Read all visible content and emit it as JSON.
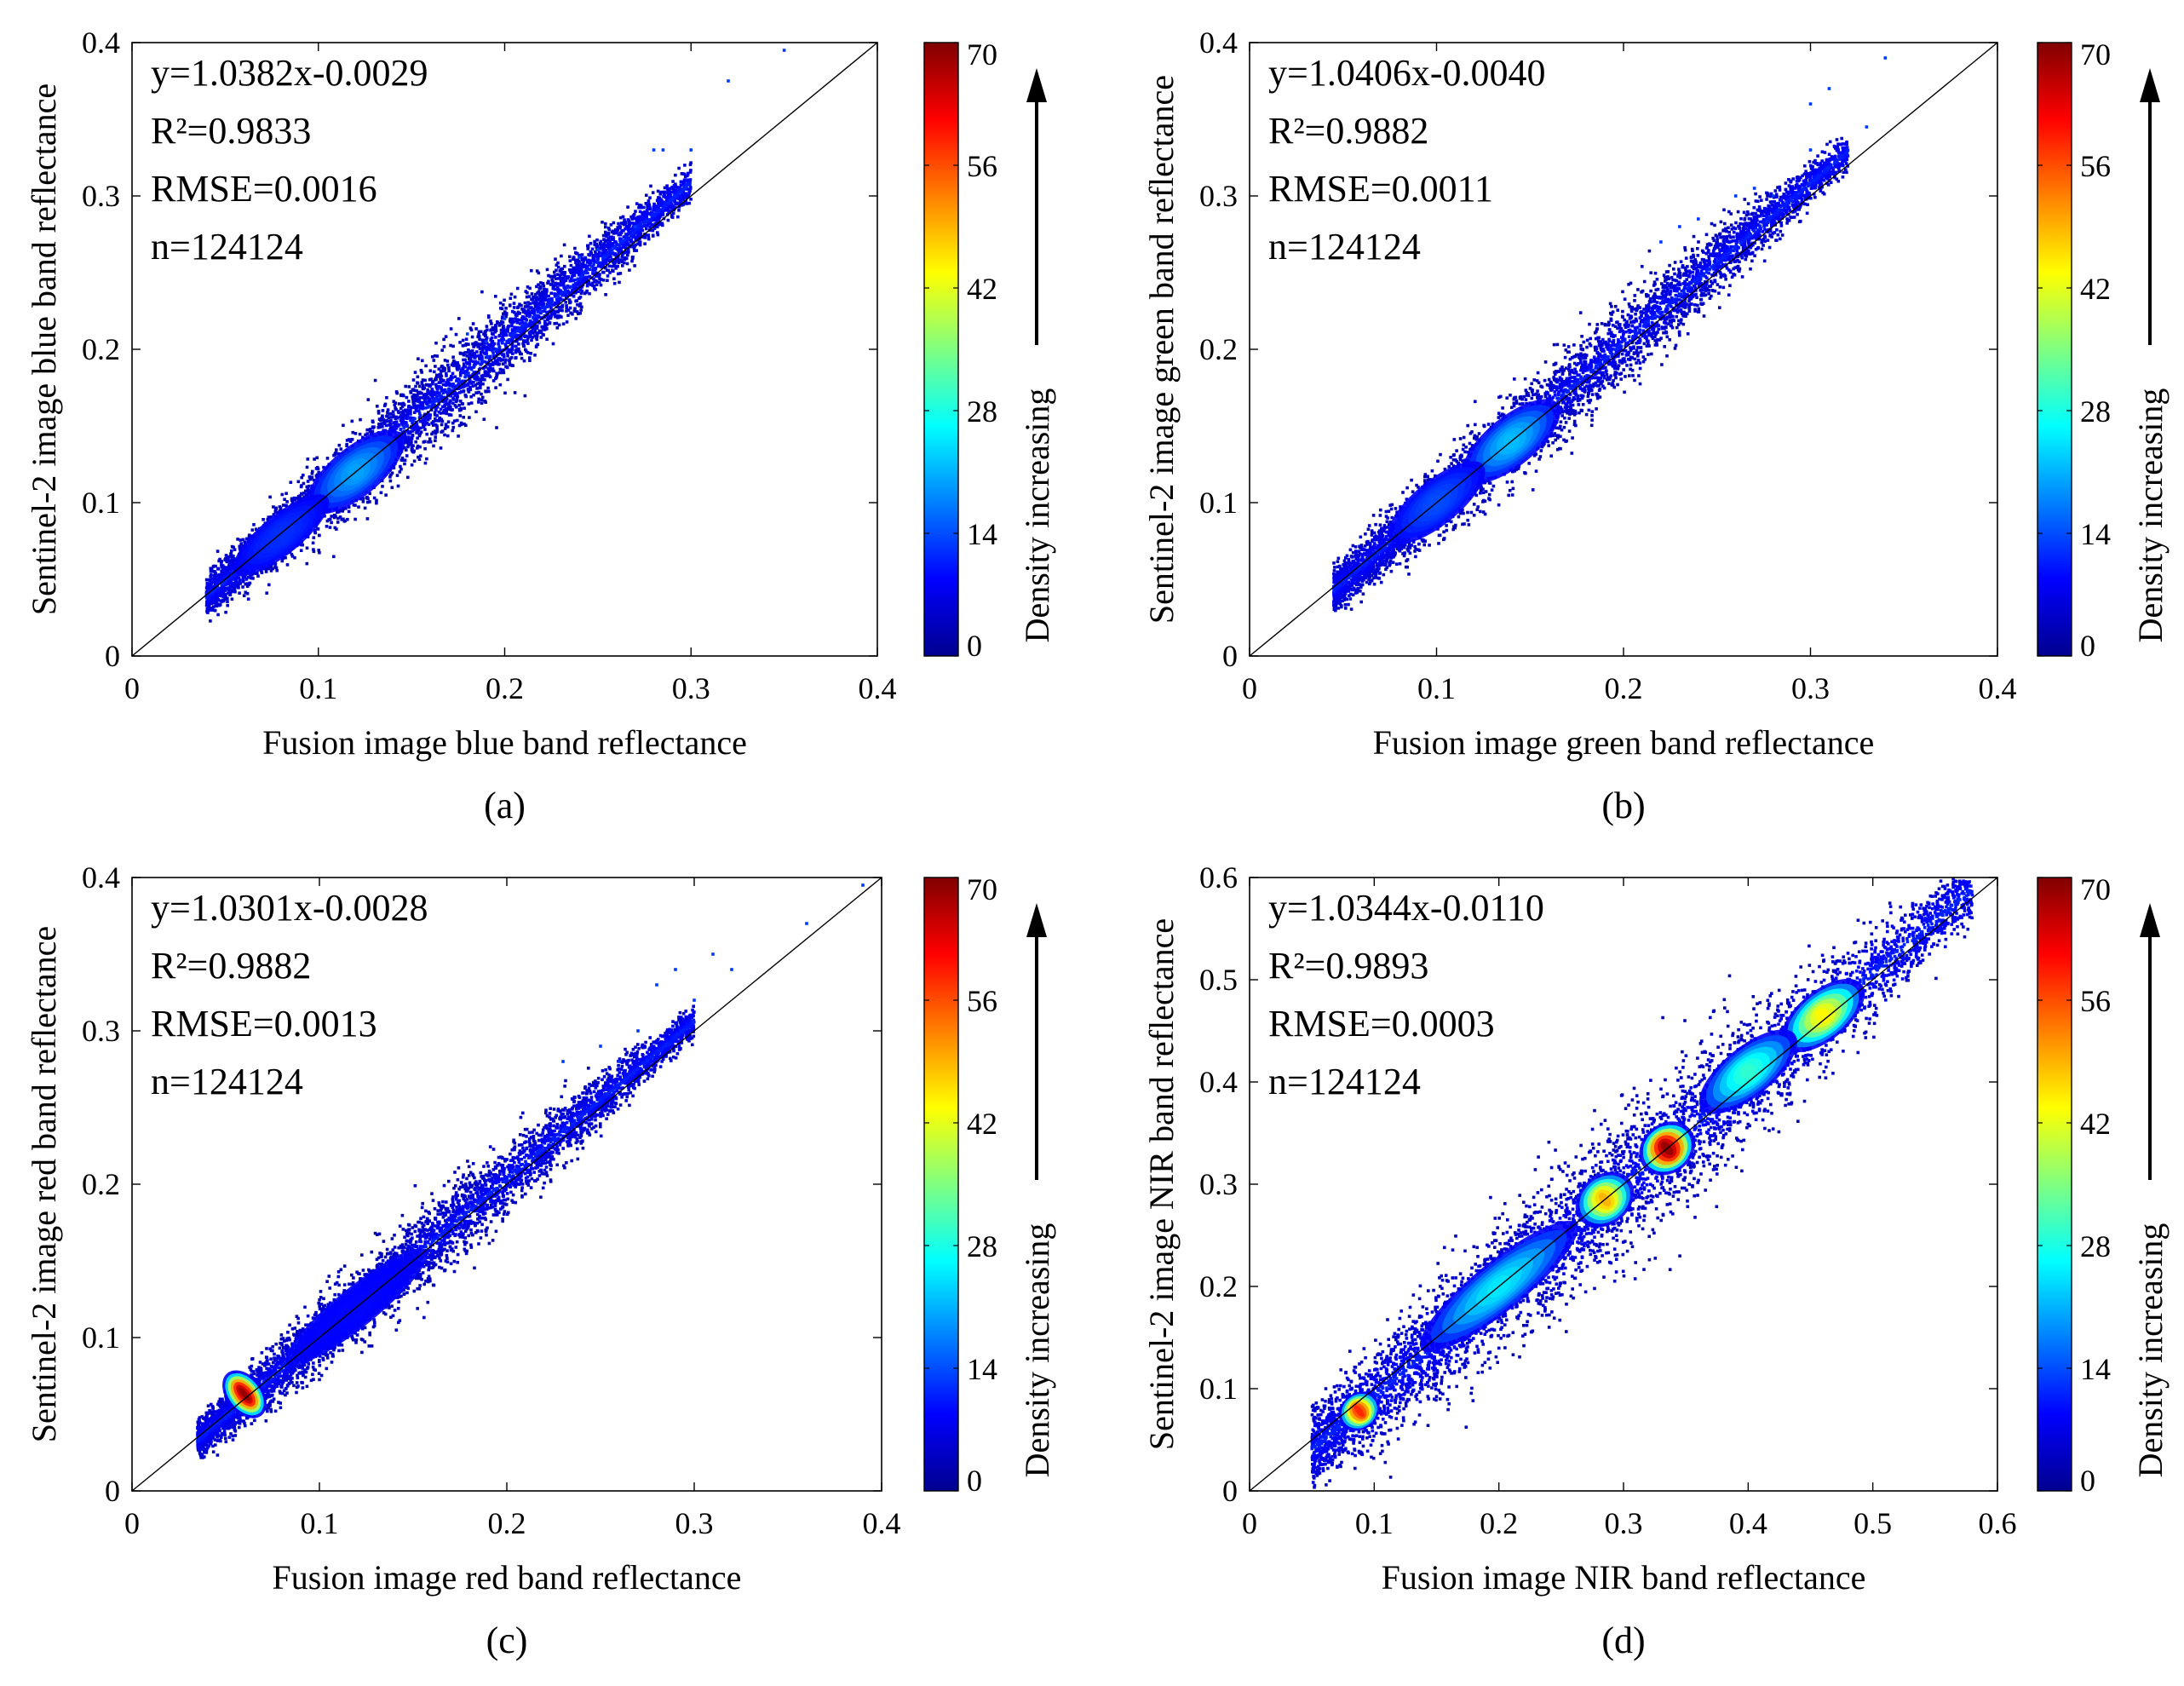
{
  "colorbar": {
    "ticks": [
      "0",
      "14",
      "28",
      "42",
      "56",
      "70"
    ],
    "label": "Density increasing",
    "colors": [
      "#00008f",
      "#0000ff",
      "#0080ff",
      "#00ffff",
      "#80ff80",
      "#ffff00",
      "#ff8000",
      "#ff0000",
      "#800000"
    ]
  },
  "chart_data": [
    {
      "type": "scatter",
      "panel_label": "(a)",
      "xlabel": "Fusion image blue band reflectance",
      "ylabel": "Sentinel-2 image blue band reflectance",
      "xlim": [
        0,
        0.4
      ],
      "ylim": [
        0,
        0.4
      ],
      "xticks": [
        "0",
        "0.1",
        "0.2",
        "0.3",
        "0.4"
      ],
      "yticks": [
        "0",
        "0.1",
        "0.2",
        "0.3",
        "0.4"
      ],
      "stats": [
        "y=1.0382x-0.0029",
        "R²=0.9833",
        "RMSE=0.0016",
        "n=124124"
      ],
      "fit": {
        "slope": 1.0382,
        "intercept": -0.0029
      },
      "one_to_one_line": true,
      "cloud": {
        "x_start": 0.04,
        "x_end": 0.3,
        "width": 0.013
      },
      "density_hotspots": [
        {
          "x": 0.12,
          "y": 0.12,
          "sx": 0.02,
          "sy": 0.008,
          "density": 20
        },
        {
          "x": 0.08,
          "y": 0.079,
          "sx": 0.02,
          "sy": 0.006,
          "density": 12
        }
      ],
      "sparse_points": [
        [
          0.18,
          0.21
        ],
        [
          0.19,
          0.205
        ],
        [
          0.2,
          0.22
        ],
        [
          0.24,
          0.26
        ],
        [
          0.25,
          0.265
        ],
        [
          0.27,
          0.28
        ],
        [
          0.28,
          0.33
        ],
        [
          0.285,
          0.33
        ],
        [
          0.3,
          0.33
        ],
        [
          0.32,
          0.375
        ],
        [
          0.35,
          0.395
        ]
      ]
    },
    {
      "type": "scatter",
      "panel_label": "(b)",
      "xlabel": "Fusion image green band reflectance",
      "ylabel": "Sentinel-2 image green band reflectance",
      "xlim": [
        0,
        0.4
      ],
      "ylim": [
        0,
        0.4
      ],
      "xticks": [
        "0",
        "0.1",
        "0.2",
        "0.3",
        "0.4"
      ],
      "yticks": [
        "0",
        "0.1",
        "0.2",
        "0.3",
        "0.4"
      ],
      "stats": [
        "y=1.0406x-0.0040",
        "R²=0.9882",
        "RMSE=0.0011",
        "n=124124"
      ],
      "fit": {
        "slope": 1.0406,
        "intercept": -0.004
      },
      "one_to_one_line": true,
      "cloud": {
        "x_start": 0.045,
        "x_end": 0.32,
        "width": 0.013
      },
      "density_hotspots": [
        {
          "x": 0.14,
          "y": 0.14,
          "sx": 0.02,
          "sy": 0.008,
          "density": 22
        },
        {
          "x": 0.1,
          "y": 0.1,
          "sx": 0.02,
          "sy": 0.007,
          "density": 14
        }
      ],
      "sparse_points": [
        [
          0.22,
          0.27
        ],
        [
          0.23,
          0.28
        ],
        [
          0.24,
          0.285
        ],
        [
          0.26,
          0.3
        ],
        [
          0.27,
          0.305
        ],
        [
          0.28,
          0.3
        ],
        [
          0.3,
          0.33
        ],
        [
          0.3,
          0.36
        ],
        [
          0.31,
          0.37
        ],
        [
          0.33,
          0.345
        ],
        [
          0.34,
          0.39
        ]
      ]
    },
    {
      "type": "scatter",
      "panel_label": "(c)",
      "xlabel": "Fusion image red band reflectance",
      "ylabel": "Sentinel-2 image red band reflectance",
      "xlim": [
        0,
        0.4
      ],
      "ylim": [
        0,
        0.4
      ],
      "xticks": [
        "0",
        "0.1",
        "0.2",
        "0.3",
        "0.4"
      ],
      "yticks": [
        "0",
        "0.1",
        "0.2",
        "0.3",
        "0.4"
      ],
      "stats": [
        "y=1.0301x-0.0028",
        "R²=0.9882",
        "RMSE=0.0013",
        "n=124124"
      ],
      "fit": {
        "slope": 1.0301,
        "intercept": -0.0028
      },
      "one_to_one_line": true,
      "cloud": {
        "x_start": 0.035,
        "x_end": 0.3,
        "width": 0.012
      },
      "density_hotspots": [
        {
          "x": 0.06,
          "y": 0.063,
          "sx": 0.006,
          "sy": 0.009,
          "density": 70
        },
        {
          "x": 0.12,
          "y": 0.12,
          "sx": 0.03,
          "sy": 0.006,
          "density": 9
        }
      ],
      "sparse_points": [
        [
          0.23,
          0.28
        ],
        [
          0.25,
          0.29
        ],
        [
          0.26,
          0.28
        ],
        [
          0.27,
          0.3
        ],
        [
          0.28,
          0.33
        ],
        [
          0.29,
          0.34
        ],
        [
          0.3,
          0.32
        ],
        [
          0.31,
          0.35
        ],
        [
          0.32,
          0.34
        ],
        [
          0.36,
          0.37
        ],
        [
          0.39,
          0.395
        ]
      ]
    },
    {
      "type": "scatter",
      "panel_label": "(d)",
      "xlabel": "Fusion image NIR band reflectance",
      "ylabel": "Sentinel-2 image NIR band reflectance",
      "xlim": [
        0,
        0.6
      ],
      "ylim": [
        0,
        0.6
      ],
      "xticks": [
        "0",
        "0.1",
        "0.2",
        "0.3",
        "0.4",
        "0.5",
        "0.6"
      ],
      "yticks": [
        "0",
        "0.1",
        "0.2",
        "0.3",
        "0.4",
        "0.5",
        "0.6"
      ],
      "stats": [
        "y=1.0344x-0.0110",
        "R²=0.9893",
        "RMSE=0.0003",
        "n=124124"
      ],
      "fit": {
        "slope": 1.0344,
        "intercept": -0.011
      },
      "one_to_one_line": true,
      "cloud": {
        "x_start": 0.05,
        "x_end": 0.58,
        "width": 0.035
      },
      "density_hotspots": [
        {
          "x": 0.335,
          "y": 0.335,
          "sx": 0.015,
          "sy": 0.012,
          "density": 70
        },
        {
          "x": 0.285,
          "y": 0.285,
          "sx": 0.016,
          "sy": 0.012,
          "density": 50
        },
        {
          "x": 0.088,
          "y": 0.078,
          "sx": 0.011,
          "sy": 0.008,
          "density": 60
        },
        {
          "x": 0.46,
          "y": 0.465,
          "sx": 0.025,
          "sy": 0.012,
          "density": 45
        },
        {
          "x": 0.2,
          "y": 0.2,
          "sx": 0.05,
          "sy": 0.012,
          "density": 25
        },
        {
          "x": 0.4,
          "y": 0.41,
          "sx": 0.03,
          "sy": 0.012,
          "density": 30
        }
      ],
      "sparse_points": []
    }
  ]
}
